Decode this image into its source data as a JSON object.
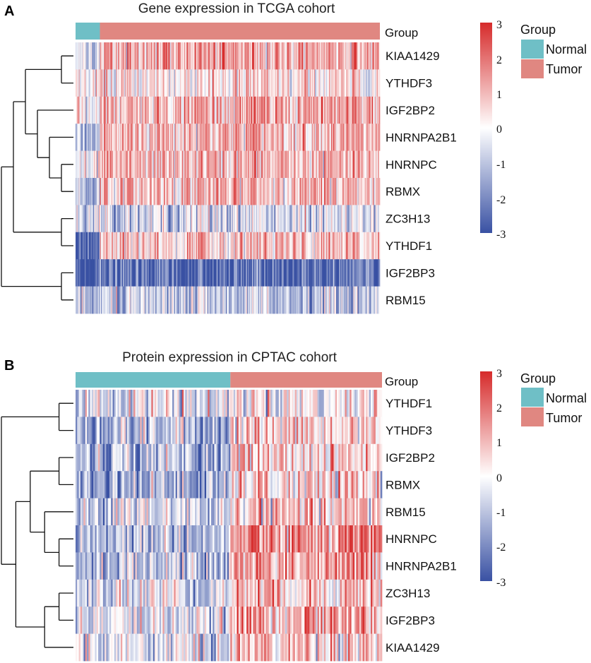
{
  "colors": {
    "normal": "#6fbfc6",
    "tumor": "#e08781",
    "high": "#d62b2b",
    "mid": "#ffffff",
    "low": "#3951a3"
  },
  "chart_data": [
    {
      "panel": "A",
      "type": "heatmap",
      "title": "Gene expression in TCGA cohort",
      "annotation_label": "Group",
      "groups": [
        {
          "name": "Normal",
          "fraction": 0.08
        },
        {
          "name": "Tumor",
          "fraction": 0.92
        }
      ],
      "legend": {
        "title": "Group",
        "entries": [
          "Normal",
          "Tumor"
        ]
      },
      "color_scale": {
        "range": [
          -3,
          3
        ],
        "ticks": [
          "3",
          "2",
          "1",
          "0",
          "-1",
          "-2",
          "-3"
        ]
      },
      "genes": [
        "KIAA1429",
        "YTHDF3",
        "IGF2BP2",
        "HNRNPA2B1",
        "HNRNPC",
        "RBMX",
        "ZC3H13",
        "YTHDF1",
        "IGF2BP3",
        "RBM15"
      ],
      "mean_z": {
        "Normal": [
          -0.3,
          0.1,
          0.2,
          -1.2,
          -0.3,
          -1.0,
          -0.5,
          -2.8,
          -2.8,
          -1.2
        ],
        "Tumor": [
          1.2,
          0.3,
          1.1,
          1.0,
          0.9,
          0.9,
          -0.6,
          0.7,
          -2.6,
          -1.0
        ]
      },
      "spread": 0.75,
      "columns": 300,
      "dendrogram": "((((KIAA1429,YTHDF3),(IGF2BP2,(HNRNPA2B1,(HNRNPC,RBMX)))),(ZC3H13,YTHDF1)),(IGF2BP3,RBM15))"
    },
    {
      "panel": "B",
      "type": "heatmap",
      "title": "Protein expression in CPTAC cohort",
      "annotation_label": "Group",
      "groups": [
        {
          "name": "Normal",
          "fraction": 0.505
        },
        {
          "name": "Tumor",
          "fraction": 0.495
        }
      ],
      "legend": {
        "title": "Group",
        "entries": [
          "Normal",
          "Tumor"
        ]
      },
      "color_scale": {
        "range": [
          -3,
          3
        ],
        "ticks": [
          "3",
          "2",
          "1",
          "0",
          "-1",
          "-2",
          "-3"
        ]
      },
      "genes": [
        "YTHDF1",
        "YTHDF3",
        "IGF2BP2",
        "RBMX",
        "RBM15",
        "HNRNPC",
        "HNRNPA2B1",
        "ZC3H13",
        "IGF2BP3",
        "KIAA1429"
      ],
      "mean_z": {
        "Normal": [
          -0.2,
          -1.0,
          -1.1,
          -1.4,
          -0.6,
          -1.0,
          -0.9,
          -0.3,
          -0.4,
          -0.4
        ],
        "Tumor": [
          0.1,
          0.5,
          0.6,
          0.4,
          0.6,
          1.4,
          1.3,
          0.9,
          1.2,
          0.8
        ]
      },
      "spread": 0.9,
      "columns": 190,
      "dendrogram": "((YTHDF1,YTHDF3),(((IGF2BP2,RBMX),(RBM15,(HNRNPC,HNRNPA2B1))),((ZC3H13,IGF2BP3),KIAA1429)))"
    }
  ]
}
